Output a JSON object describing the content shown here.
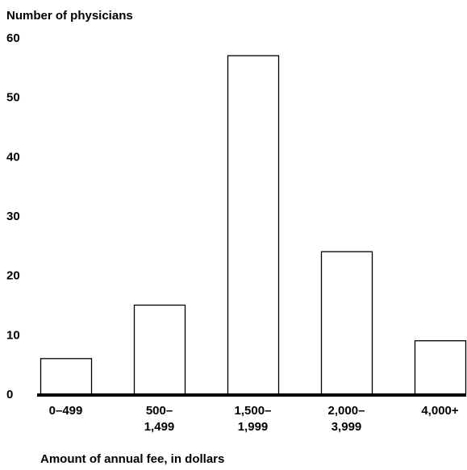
{
  "chart_data": {
    "type": "bar",
    "ylabel": "Number of physicians",
    "xlabel": "Amount of annual fee, in dollars",
    "ylim": [
      0,
      60
    ],
    "yticks": [
      "0",
      "10",
      "20",
      "30",
      "40",
      "50",
      "60"
    ],
    "categories": [
      {
        "line1": "0–499",
        "line2": ""
      },
      {
        "line1": "500–",
        "line2": "1,499"
      },
      {
        "line1": "1,500–",
        "line2": "1,999"
      },
      {
        "line1": "2,000–",
        "line2": "3,999"
      },
      {
        "line1": "4,000+",
        "line2": ""
      }
    ],
    "values": [
      6,
      15,
      57,
      24,
      9
    ],
    "grid": false,
    "colors": {
      "bar_fill": "#ffffff",
      "bar_stroke": "#000000",
      "axis": "#000000"
    }
  }
}
